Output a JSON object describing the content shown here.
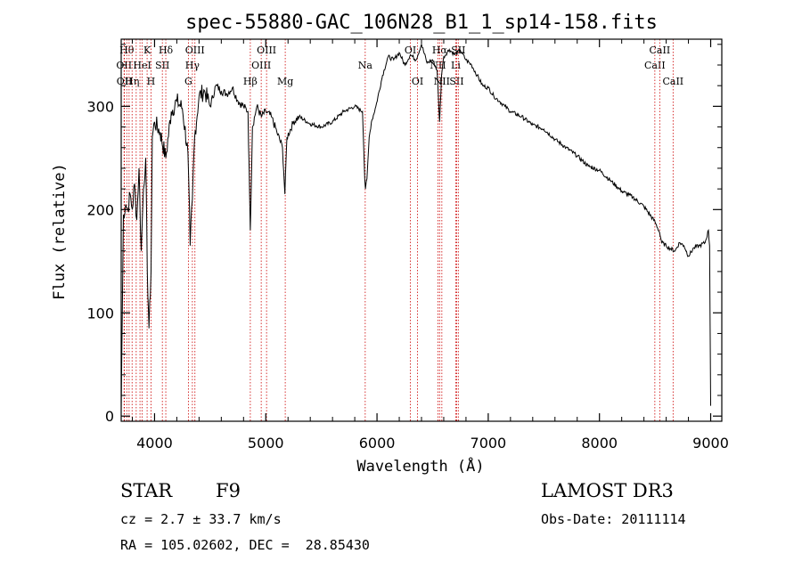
{
  "chart_data": {
    "type": "line",
    "title": "spec-55880-GAC_106N28_B1_1_sp14-158.fits",
    "xlabel": "Wavelength (Å)",
    "ylabel": "Flux (relative)",
    "xlim": [
      3700,
      9100
    ],
    "ylim": [
      -5,
      365
    ],
    "xticks": [
      4000,
      5000,
      6000,
      7000,
      8000,
      9000
    ],
    "yticks": [
      0,
      100,
      200,
      300
    ],
    "series": [
      {
        "name": "flux",
        "x": [
          3700,
          3720,
          3740,
          3760,
          3780,
          3800,
          3820,
          3840,
          3860,
          3880,
          3900,
          3920,
          3935,
          3950,
          3968,
          3980,
          4000,
          4050,
          4101,
          4150,
          4200,
          4250,
          4300,
          4320,
          4340,
          4360,
          4400,
          4450,
          4500,
          4550,
          4600,
          4650,
          4700,
          4750,
          4800,
          4840,
          4861,
          4880,
          4920,
          4960,
          5000,
          5050,
          5100,
          5150,
          5172,
          5190,
          5250,
          5300,
          5400,
          5500,
          5600,
          5700,
          5800,
          5870,
          5890,
          5896,
          5910,
          5930,
          5950,
          5990,
          6050,
          6100,
          6150,
          6200,
          6250,
          6300,
          6350,
          6400,
          6450,
          6500,
          6540,
          6563,
          6580,
          6600,
          6650,
          6700,
          6750,
          6800,
          6850,
          6900,
          6950,
          7000,
          7050,
          7100,
          7150,
          7200,
          7300,
          7400,
          7500,
          7600,
          7700,
          7800,
          7900,
          8000,
          8100,
          8200,
          8300,
          8400,
          8500,
          8540,
          8560,
          8600,
          8640,
          8680,
          8720,
          8760,
          8800,
          8850,
          8900,
          8950,
          8980,
          8990,
          9000
        ],
        "y": [
          5,
          195,
          205,
          200,
          215,
          200,
          225,
          190,
          240,
          160,
          220,
          250,
          140,
          85,
          140,
          270,
          285,
          275,
          250,
          295,
          305,
          298,
          255,
          165,
          210,
          270,
          310,
          315,
          300,
          320,
          315,
          312,
          318,
          305,
          300,
          295,
          180,
          280,
          300,
          290,
          295,
          290,
          275,
          260,
          215,
          270,
          285,
          290,
          283,
          280,
          285,
          295,
          300,
          295,
          230,
          220,
          230,
          270,
          285,
          300,
          330,
          348,
          345,
          352,
          340,
          350,
          345,
          360,
          342,
          345,
          335,
          285,
          330,
          348,
          355,
          350,
          354,
          345,
          340,
          330,
          320,
          318,
          310,
          305,
          300,
          295,
          290,
          282,
          278,
          268,
          260,
          252,
          242,
          238,
          228,
          218,
          212,
          203,
          188,
          178,
          168,
          165,
          162,
          160,
          168,
          165,
          155,
          163,
          165,
          168,
          180,
          165,
          10
        ]
      }
    ],
    "lines": [
      {
        "w": 3726,
        "label": "OII",
        "row": 1
      },
      {
        "w": 3729,
        "label": "OII",
        "row": 2
      },
      {
        "w": 3750,
        "label": "Hθ",
        "row": 0
      },
      {
        "w": 3771,
        "label": "",
        "row": -1
      },
      {
        "w": 3798,
        "label": "Hη",
        "row": 2
      },
      {
        "w": 3835,
        "label": "",
        "row": -1
      },
      {
        "w": 3869,
        "label": "",
        "row": -1
      },
      {
        "w": 3889,
        "label": "HeI",
        "row": 1
      },
      {
        "w": 3933,
        "label": "K",
        "row": 0
      },
      {
        "w": 3968,
        "label": "H",
        "row": 2
      },
      {
        "w": 4070,
        "label": "SII",
        "row": 1
      },
      {
        "w": 4101,
        "label": "Hδ",
        "row": 0
      },
      {
        "w": 4304,
        "label": "G",
        "row": 2
      },
      {
        "w": 4340,
        "label": "Hγ",
        "row": 1
      },
      {
        "w": 4363,
        "label": "OIII",
        "row": 0
      },
      {
        "w": 4861,
        "label": "Hβ",
        "row": 2
      },
      {
        "w": 4959,
        "label": "OIII",
        "row": 1
      },
      {
        "w": 5007,
        "label": "OIII",
        "row": 0
      },
      {
        "w": 5175,
        "label": "Mg",
        "row": 2
      },
      {
        "w": 5894,
        "label": "Na",
        "row": 1
      },
      {
        "w": 6300,
        "label": "OI",
        "row": 0
      },
      {
        "w": 6364,
        "label": "OI",
        "row": 2
      },
      {
        "w": 6548,
        "label": "NII",
        "row": 1
      },
      {
        "w": 6563,
        "label": "Hα",
        "row": 0
      },
      {
        "w": 6583,
        "label": "NII",
        "row": 2
      },
      {
        "w": 6708,
        "label": "Li",
        "row": 1
      },
      {
        "w": 6716,
        "label": "SII",
        "row": 2
      },
      {
        "w": 6731,
        "label": "SII",
        "row": 0
      },
      {
        "w": 8498,
        "label": "CaII",
        "row": 1
      },
      {
        "w": 8542,
        "label": "CaII",
        "row": 0
      },
      {
        "w": 8662,
        "label": "CaII",
        "row": 2
      }
    ]
  },
  "info": {
    "class_label": "STAR",
    "subclass": "F9",
    "survey": "LAMOST DR3",
    "redshift": "cz = 2.7 ± 33.7 km/s",
    "obs_date": "Obs-Date: 20111114",
    "coords": "RA = 105.02602, DEC =  28.85430"
  },
  "colors": {
    "axis": "#000000",
    "line_marker": "#cc0000",
    "spectrum": "#000000"
  }
}
